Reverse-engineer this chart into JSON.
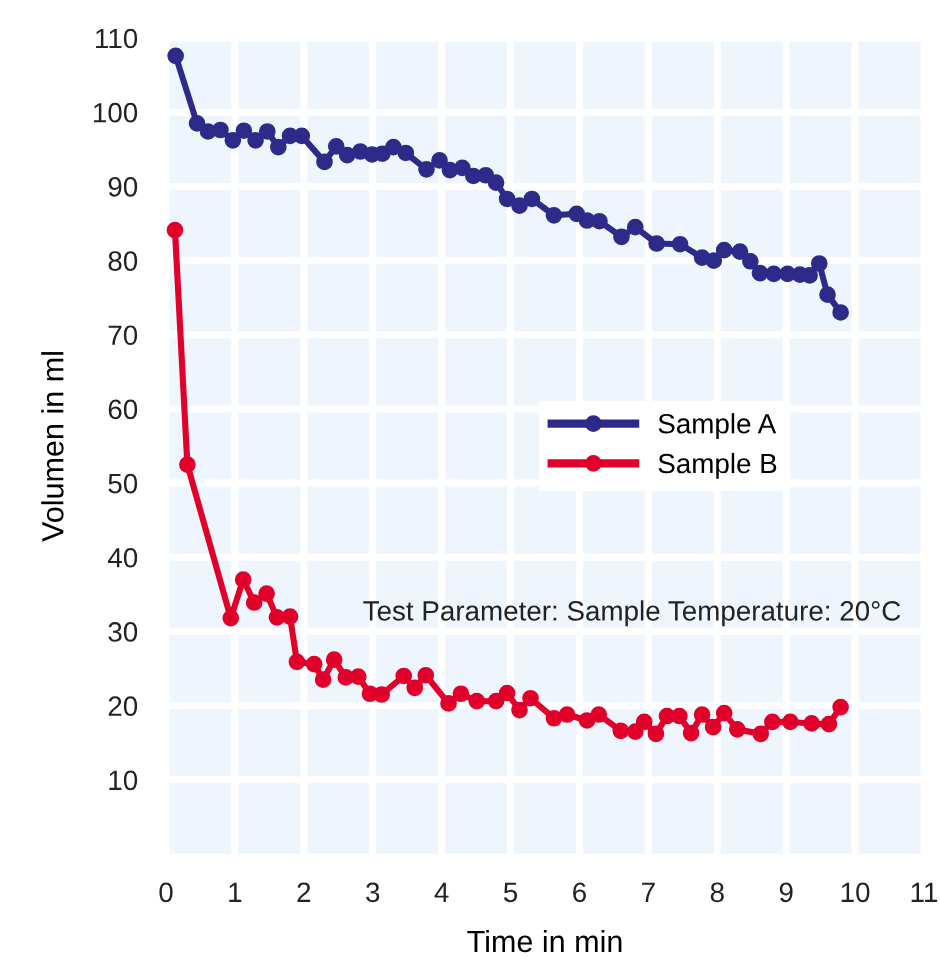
{
  "chart_data": {
    "type": "line",
    "xlabel": "Time in min",
    "ylabel": "Volumen in ml",
    "xlim": [
      0,
      11
    ],
    "ylim": [
      0,
      110
    ],
    "xticks": [
      0,
      1,
      2,
      3,
      4,
      5,
      6,
      7,
      8,
      9,
      10,
      11
    ],
    "yticks": [
      10,
      20,
      30,
      40,
      50,
      60,
      70,
      80,
      90,
      100,
      110
    ],
    "grid": true,
    "legend": "center right",
    "marker": "circle",
    "line_style": "solid",
    "annotations": [
      "Test Parameter: Sample Temperature: 20°C"
    ],
    "series": [
      {
        "name": "Sample A",
        "color": "#2e2a8a",
        "x": [
          0.14,
          0.45,
          0.61,
          0.79,
          0.97,
          1.13,
          1.3,
          1.47,
          1.63,
          1.8,
          1.97,
          2.3,
          2.47,
          2.63,
          2.82,
          2.99,
          3.14,
          3.3,
          3.48,
          3.78,
          3.97,
          4.12,
          4.3,
          4.46,
          4.64,
          4.79,
          4.95,
          5.13,
          5.31,
          5.63,
          5.96,
          6.11,
          6.29,
          6.61,
          6.81,
          7.12,
          7.46,
          7.78,
          7.95,
          8.1,
          8.33,
          8.48,
          8.62,
          8.82,
          9.02,
          9.2,
          9.34,
          9.48,
          9.6,
          9.79
        ],
        "values": [
          107.6,
          98.5,
          97.4,
          97.6,
          96.2,
          97.5,
          96.2,
          97.4,
          95.3,
          96.8,
          96.8,
          93.3,
          95.4,
          94.2,
          94.7,
          94.3,
          94.4,
          95.3,
          94.5,
          92.3,
          93.5,
          92.2,
          92.5,
          91.4,
          91.5,
          90.5,
          88.3,
          87.4,
          88.3,
          86.1,
          86.3,
          85.4,
          85.3,
          83.2,
          84.5,
          82.3,
          82.2,
          80.4,
          80.0,
          81.4,
          81.2,
          79.9,
          78.3,
          78.2,
          78.2,
          78.1,
          78.0,
          79.6,
          75.4,
          73.0
        ]
      },
      {
        "name": "Sample B",
        "color": "#e0002a",
        "x": [
          0.13,
          0.31,
          0.94,
          1.12,
          1.28,
          1.46,
          1.61,
          1.8,
          1.9,
          2.15,
          2.28,
          2.44,
          2.61,
          2.79,
          2.96,
          3.13,
          3.45,
          3.61,
          3.77,
          4.1,
          4.28,
          4.51,
          4.79,
          4.95,
          5.13,
          5.29,
          5.63,
          5.82,
          6.11,
          6.28,
          6.6,
          6.81,
          6.94,
          7.11,
          7.27,
          7.45,
          7.62,
          7.78,
          7.94,
          8.1,
          8.29,
          8.63,
          8.8,
          9.06,
          9.37,
          9.62,
          9.79
        ],
        "values": [
          84.1,
          52.5,
          31.8,
          37.0,
          33.9,
          35.1,
          31.9,
          32.0,
          25.9,
          25.6,
          23.5,
          26.2,
          23.8,
          23.9,
          21.6,
          21.5,
          24.0,
          22.4,
          24.1,
          20.3,
          21.6,
          20.6,
          20.6,
          21.7,
          19.4,
          21.0,
          18.3,
          18.8,
          18.0,
          18.8,
          16.6,
          16.5,
          17.8,
          16.2,
          18.6,
          18.6,
          16.3,
          18.8,
          17.1,
          19.0,
          16.8,
          16.2,
          17.8,
          17.8,
          17.6,
          17.5,
          19.8
        ]
      }
    ]
  }
}
